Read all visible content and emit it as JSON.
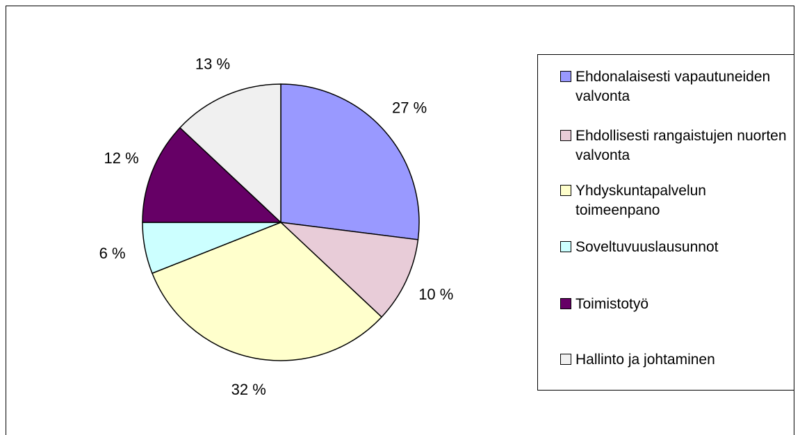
{
  "chart_data": {
    "type": "pie",
    "categories": [
      "Ehdonalaisesti vapautuneiden valvonta",
      "Ehdollisesti rangaistujen nuorten valvonta",
      "Yhdyskuntapalvelun toimeenpano",
      "Soveltuvuuslausunnot",
      "Toimistotyö",
      "Hallinto ja johtaminen"
    ],
    "values": [
      27,
      10,
      32,
      6,
      12,
      13
    ],
    "value_labels": [
      "27 %",
      "10 %",
      "32 %",
      "6 %",
      "12 %",
      "13 %"
    ],
    "colors": [
      "#9999ff",
      "#e8ccd8",
      "#ffffcc",
      "#ccffff",
      "#660066",
      "#f0f0f0"
    ],
    "legend": "right"
  }
}
